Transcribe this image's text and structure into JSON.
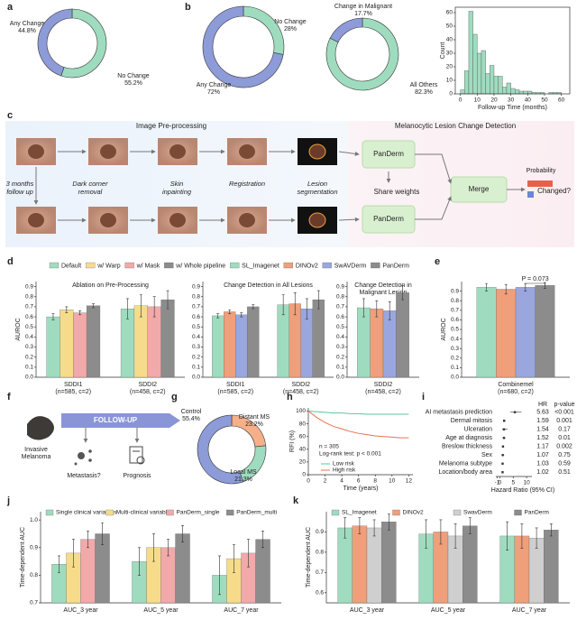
{
  "panel_labels": [
    "a",
    "b",
    "c",
    "d",
    "e",
    "f",
    "g",
    "h",
    "i",
    "j",
    "k"
  ],
  "chart_data": [
    {
      "type": "pie",
      "categories": [
        "No Change",
        "Any Change"
      ],
      "values": [
        55.2,
        44.8
      ],
      "value_labels": [
        "55.2%",
        "44.8%"
      ],
      "colors": [
        "#9fdcbf",
        "#8d9bd8"
      ]
    },
    {
      "type": "pie",
      "categories": [
        "No Change",
        "Any Change"
      ],
      "values": [
        28,
        72
      ],
      "value_labels": [
        "28%",
        "72%"
      ],
      "colors": [
        "#9fdcbf",
        "#8d9bd8"
      ]
    },
    {
      "type": "pie",
      "categories": [
        "All Others",
        "Change in Malignant"
      ],
      "values": [
        82.3,
        17.7
      ],
      "value_labels": [
        "82.3%",
        "17.7%"
      ],
      "colors": [
        "#9fdcbf",
        "#8d9bd8"
      ]
    },
    {
      "type": "histogram",
      "x_label": "Follow-up Time (months)",
      "y_label": "Count",
      "bins": [
        0,
        2.5,
        5,
        7.5,
        10,
        12.5,
        15,
        17.5,
        20,
        22.5,
        25,
        27.5,
        30,
        32.5,
        35,
        37.5,
        40,
        42.5,
        45,
        47.5,
        50,
        52.5,
        55,
        57.5,
        60
      ],
      "values": [
        3,
        17,
        61,
        44,
        30,
        32,
        15,
        21,
        13,
        13,
        5,
        8,
        4,
        3,
        2,
        2,
        2,
        1,
        1,
        1,
        0,
        1,
        1,
        1
      ],
      "color": "#9fdcbf",
      "xlim": [
        -3,
        65
      ],
      "xticks": [
        0,
        10,
        20,
        30,
        40,
        50,
        60
      ],
      "ylim": [
        0,
        64
      ],
      "yticks": [
        0,
        10,
        20,
        30,
        40,
        50,
        60
      ]
    },
    {
      "type": "bar",
      "title": [
        "Ablation on Pre-Processing"
      ],
      "y_label": "AUROC",
      "categories": [
        "SDDI1",
        "SDDI2"
      ],
      "category_notes": [
        "(n=585, c=2)",
        "(n=458, c=2)"
      ],
      "series": [
        {
          "name": "Default",
          "color": "#9fdcbf",
          "values": [
            0.6,
            0.68
          ],
          "errors": [
            0.03,
            0.1
          ]
        },
        {
          "name": "w/ Warp",
          "color": "#f6dc8a",
          "values": [
            0.67,
            0.71
          ],
          "errors": [
            0.03,
            0.11
          ]
        },
        {
          "name": "w/ Mask",
          "color": "#f2a9a9",
          "values": [
            0.64,
            0.7
          ],
          "errors": [
            0.02,
            0.1
          ]
        },
        {
          "name": "w/ Whole pipeline",
          "color": "#8c8c8c",
          "values": [
            0.71,
            0.77
          ],
          "errors": [
            0.02,
            0.09
          ]
        }
      ],
      "ylim": [
        0,
        0.95
      ],
      "yticks": [
        {
          "value": 0,
          "label": "0.0"
        },
        0.1,
        0.2,
        0.3,
        0.4,
        0.5,
        0.6,
        0.7,
        0.8,
        0.9
      ]
    },
    {
      "type": "bar",
      "title": [
        "Change Detection in All Lesions"
      ],
      "categories": [
        "SDDI1",
        "SDDI2"
      ],
      "category_notes": [
        "(n=585, c=2)",
        "(n=458, c=2)"
      ],
      "series": [
        {
          "name": "SL_Imagenet",
          "color": "#9fdcbf",
          "values": [
            0.61,
            0.72
          ],
          "errors": [
            0.02,
            0.1
          ]
        },
        {
          "name": "DINOv2",
          "color": "#ef9f7a",
          "values": [
            0.65,
            0.73
          ],
          "errors": [
            0.02,
            0.11
          ]
        },
        {
          "name": "SwAVDerm",
          "color": "#9aa6de",
          "values": [
            0.62,
            0.68
          ],
          "errors": [
            0.02,
            0.1
          ]
        },
        {
          "name": "PanDerm",
          "color": "#8c8c8c",
          "values": [
            0.7,
            0.77
          ],
          "errors": [
            0.02,
            0.09
          ]
        }
      ],
      "ylim": [
        0,
        0.95
      ],
      "yticks": [
        {
          "value": 0,
          "label": "0.0"
        },
        0.1,
        0.2,
        0.3,
        0.4,
        0.5,
        0.6,
        0.7,
        0.8,
        0.9
      ]
    },
    {
      "type": "bar",
      "title": [
        "Change Detection in",
        "Malignant Lesion"
      ],
      "categories": [
        "SDDI2"
      ],
      "category_notes": [
        "(n=458, c=2)"
      ],
      "series": [
        {
          "color": "#9fdcbf",
          "values": [
            0.69
          ],
          "errors": [
            0.09
          ]
        },
        {
          "color": "#ef9f7a",
          "values": [
            0.68
          ],
          "errors": [
            0.08
          ]
        },
        {
          "color": "#9aa6de",
          "values": [
            0.66
          ],
          "errors": [
            0.09
          ]
        },
        {
          "color": "#8c8c8c",
          "values": [
            0.84
          ],
          "errors": [
            0.07
          ]
        }
      ],
      "ylim": [
        0,
        0.95
      ],
      "yticks": [
        {
          "value": 0,
          "label": "0.0"
        },
        0.1,
        0.2,
        0.3,
        0.4,
        0.5,
        0.6,
        0.7,
        0.8,
        0.9
      ]
    },
    {
      "type": "bar",
      "y_label": "AUROC",
      "categories": [
        "Combinemel"
      ],
      "category_notes": [
        "(n=680, c=2)"
      ],
      "annotation": "P = 0.073",
      "series": [
        {
          "color": "#9fdcbf",
          "values": [
            0.94
          ],
          "errors": [
            0.04
          ]
        },
        {
          "color": "#ef9f7a",
          "values": [
            0.92
          ],
          "errors": [
            0.05
          ]
        },
        {
          "color": "#9aa6de",
          "values": [
            0.94
          ],
          "errors": [
            0.04
          ]
        },
        {
          "color": "#8c8c8c",
          "values": [
            0.96
          ],
          "errors": [
            0.03
          ]
        }
      ],
      "ylim": [
        0,
        1.0
      ],
      "yticks": [
        {
          "value": 0,
          "label": "0.0"
        },
        0.1,
        0.2,
        0.3,
        0.4,
        0.5,
        0.6,
        0.7,
        0.8,
        0.9
      ]
    },
    {
      "type": "pie",
      "categories": [
        "Distant MS",
        "Local MS",
        "Control"
      ],
      "values": [
        23.2,
        21.3,
        55.4
      ],
      "value_labels": [
        "23.2%",
        "21.3%",
        "55.4%"
      ],
      "colors": [
        "#f5b08a",
        "#9fdcbf",
        "#8d9bd8"
      ]
    },
    {
      "type": "line",
      "x_label": "Time (years)",
      "y_label": "RFI (%)",
      "annotations": [
        "n = 305",
        "Log-rank test: p < 0.001"
      ],
      "series": [
        {
          "name": "Low risk",
          "color": "#5cc6a0",
          "x": [
            0,
            1,
            2,
            3,
            4,
            5,
            6,
            7,
            8,
            9,
            10,
            11,
            12
          ],
          "values": [
            100,
            99,
            98,
            97,
            97,
            96,
            96,
            95,
            95,
            95,
            95,
            95,
            95
          ]
        },
        {
          "name": "High risk",
          "color": "#e8734c",
          "x": [
            0,
            1,
            2,
            3,
            4,
            5,
            6,
            7,
            8,
            9,
            10,
            11,
            12
          ],
          "values": [
            100,
            90,
            82,
            76,
            72,
            68,
            65,
            63,
            61,
            60,
            59,
            58,
            58
          ]
        }
      ],
      "xlim": [
        0,
        12.5
      ],
      "xticks": [
        0,
        2,
        4,
        6,
        8,
        10,
        12
      ],
      "ylim": [
        0,
        105
      ],
      "yticks": [
        0,
        20,
        40,
        60,
        80,
        100
      ]
    },
    {
      "type": "forest",
      "headers": [
        "HR",
        "p-value"
      ],
      "x_label": "Hazard Ratio (95% CI)",
      "categories": [
        "AI metastasis prediction",
        "Dermal mitosis",
        "Ulceration",
        "Age at diagnosis",
        "Breslow thickness",
        "Sex",
        "Melanoma subtype",
        "Location/body area"
      ],
      "values": [
        5.63,
        1.59,
        1.54,
        1.52,
        1.17,
        1.07,
        1.03,
        1.02
      ],
      "ci_low": [
        3.9,
        1.2,
        0.8,
        1.1,
        1.06,
        0.7,
        0.9,
        0.95
      ],
      "ci_high": [
        8.1,
        2.1,
        2.9,
        2.1,
        1.29,
        1.6,
        1.2,
        1.1
      ],
      "p_values": [
        "<0.001",
        "0.001",
        "0.17",
        "0.01",
        "0.002",
        "0.75",
        "0.59",
        "0.51"
      ],
      "xlim": [
        -1.5,
        12
      ],
      "xticks": [
        -1,
        0,
        5,
        10
      ]
    },
    {
      "type": "bar",
      "y_label": "Time-dependent AUC",
      "legend": true,
      "categories": [
        "AUC_3 year",
        "AUC_5 year",
        "AUC_7 year"
      ],
      "series": [
        {
          "name": "Single clinical variables",
          "color": "#9fdcbf",
          "values": [
            0.84,
            0.85,
            0.8
          ],
          "errors": [
            0.03,
            0.05,
            0.07
          ]
        },
        {
          "name": "Multi-clinical variables",
          "color": "#f6dc8a",
          "values": [
            0.88,
            0.9,
            0.86
          ],
          "errors": [
            0.05,
            0.05,
            0.05
          ]
        },
        {
          "name": "PanDerm_single",
          "color": "#f2a9a9",
          "values": [
            0.93,
            0.9,
            0.88
          ],
          "errors": [
            0.03,
            0.03,
            0.05
          ]
        },
        {
          "name": "PanDerm_multi",
          "color": "#8c8c8c",
          "values": [
            0.95,
            0.95,
            0.93
          ],
          "errors": [
            0.04,
            0.03,
            0.03
          ]
        }
      ],
      "ylim": [
        0.7,
        1.03
      ],
      "yticks": [
        0.7,
        0.8,
        0.9,
        {
          "value": 1,
          "label": "1.0"
        }
      ]
    },
    {
      "type": "bar",
      "y_label": "Time-dependent AUC",
      "legend": true,
      "categories": [
        "AUC_3 year",
        "AUC_5 year",
        "AUC_7 year"
      ],
      "series": [
        {
          "name": "SL_Imagenet",
          "color": "#9fdcbf",
          "values": [
            0.92,
            0.89,
            0.88
          ],
          "errors": [
            0.05,
            0.07,
            0.07
          ]
        },
        {
          "name": "DINOv2",
          "color": "#ef9f7a",
          "values": [
            0.93,
            0.9,
            0.88
          ],
          "errors": [
            0.04,
            0.06,
            0.06
          ]
        },
        {
          "name": "SwavDerm",
          "color": "#cfcfcf",
          "values": [
            0.92,
            0.88,
            0.87
          ],
          "errors": [
            0.04,
            0.06,
            0.05
          ]
        },
        {
          "name": "PanDerm",
          "color": "#8c8c8c",
          "values": [
            0.95,
            0.93,
            0.91
          ],
          "errors": [
            0.04,
            0.04,
            0.03
          ]
        }
      ],
      "ylim": [
        0.55,
        1.0
      ],
      "yticks": [
        0.6,
        0.7,
        0.8,
        0.9
      ]
    }
  ],
  "diagram_c": {
    "sections": [
      "Image Pre-processing",
      "Melanocytic Lesion Change Detection"
    ],
    "steps": [
      [
        "3 months",
        "follow  up"
      ],
      [
        "Dark  corner",
        "removal"
      ],
      [
        "Skin",
        "inpainting"
      ],
      [
        "Registration"
      ],
      [
        "Lesion",
        "segmentation"
      ]
    ],
    "models": [
      "PanDerm",
      "PanDerm"
    ],
    "share": "Share weights",
    "merge": "Merge",
    "probability": "Probability",
    "output": "Changed?"
  },
  "diagram_f": {
    "input": [
      "Invasive",
      "Melanoma"
    ],
    "arrow": "FOLLOW-UP",
    "outputs": [
      "Metastasis?",
      "Prognosis"
    ]
  }
}
